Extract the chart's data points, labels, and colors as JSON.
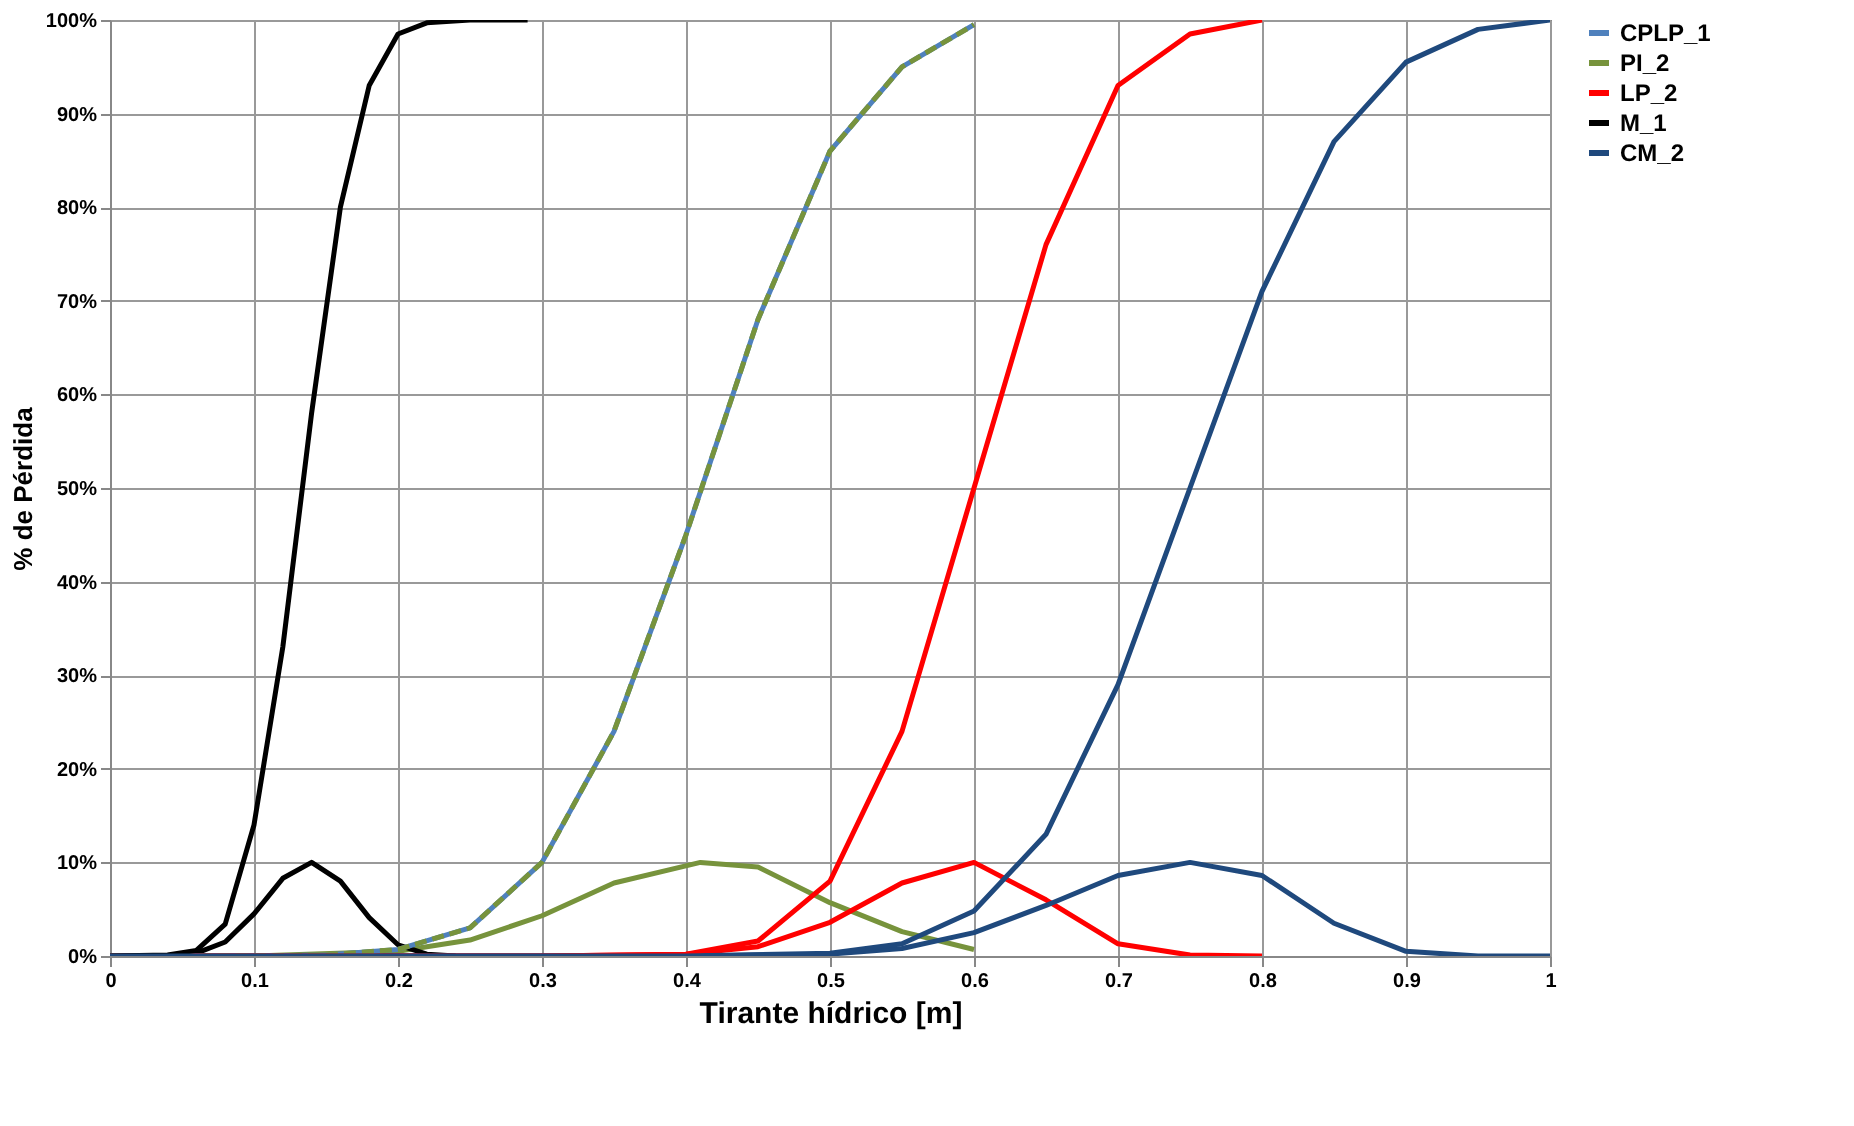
{
  "chart_data": {
    "type": "line",
    "xlabel": "Tirante hídrico [m]",
    "ylabel": "% de Pérdida",
    "xlim": [
      0,
      1
    ],
    "xticks": [
      0,
      0.1,
      0.2,
      0.3,
      0.4,
      0.5,
      0.6,
      0.7,
      0.8,
      0.9,
      1
    ],
    "ylim": [
      0,
      100
    ],
    "yticks": [
      {
        "value": 0,
        "label": "0%"
      },
      {
        "value": 10,
        "label": "10%"
      },
      {
        "value": 20,
        "label": "20%"
      },
      {
        "value": 30,
        "label": "30%"
      },
      {
        "value": 40,
        "label": "40%"
      },
      {
        "value": 50,
        "label": "50%"
      },
      {
        "value": 60,
        "label": "60%"
      },
      {
        "value": 70,
        "label": "70%"
      },
      {
        "value": 80,
        "label": "80%"
      },
      {
        "value": 90,
        "label": "90%"
      },
      {
        "value": 100,
        "label": "100%"
      }
    ],
    "grid": true,
    "legend": "right",
    "marker": "none",
    "series": [
      {
        "name": "CPLP_1",
        "color": "#4f81bd",
        "line_style": "solid",
        "x": [
          0,
          0.1,
          0.15,
          0.2,
          0.25,
          0.3,
          0.35,
          0.4,
          0.45,
          0.5,
          0.55,
          0.6
        ],
        "values": [
          0,
          0,
          0.1,
          0.7,
          3,
          10,
          24,
          45,
          68,
          86,
          95,
          99.5
        ]
      },
      {
        "name": "PI_2",
        "color": "#77933c",
        "line_style": "dashed",
        "x": [
          0,
          0.1,
          0.15,
          0.2,
          0.25,
          0.3,
          0.35,
          0.4,
          0.45,
          0.5,
          0.55,
          0.6
        ],
        "values": [
          0,
          0,
          0.1,
          0.7,
          3,
          10,
          24,
          45,
          68,
          86,
          95,
          99.5
        ]
      },
      {
        "color": "#77933c",
        "line_style": "solid",
        "x": [
          0,
          0.1,
          0.2,
          0.25,
          0.3,
          0.35,
          0.41,
          0.45,
          0.5,
          0.55,
          0.6
        ],
        "values": [
          0,
          0,
          0.5,
          1.7,
          4.3,
          7.8,
          10,
          9.5,
          5.7,
          2.6,
          0.7
        ]
      },
      {
        "name": "LP_2",
        "color": "#ff0000",
        "line_style": "solid",
        "x": [
          0,
          0.3,
          0.4,
          0.45,
          0.5,
          0.55,
          0.6,
          0.65,
          0.7,
          0.75,
          0.8
        ],
        "values": [
          0,
          0,
          0.2,
          1.6,
          8,
          24,
          50,
          76,
          93,
          98.5,
          100
        ]
      },
      {
        "color": "#ff0000",
        "line_style": "solid",
        "x": [
          0,
          0.3,
          0.4,
          0.45,
          0.5,
          0.55,
          0.6,
          0.65,
          0.7,
          0.75,
          0.8
        ],
        "values": [
          0,
          0,
          0.2,
          1,
          3.6,
          7.8,
          10,
          6,
          1.3,
          0.1,
          0
        ]
      },
      {
        "name": "M_1",
        "color": "#000000",
        "line_style": "solid",
        "x": [
          0,
          0.04,
          0.06,
          0.08,
          0.1,
          0.12,
          0.14,
          0.16,
          0.18,
          0.2,
          0.22,
          0.25,
          0.29
        ],
        "values": [
          0,
          0.1,
          0.6,
          3.4,
          14,
          33,
          58,
          80,
          93,
          98.5,
          99.7,
          100,
          100
        ]
      },
      {
        "color": "#000000",
        "line_style": "solid",
        "x": [
          0,
          0.04,
          0.06,
          0.08,
          0.1,
          0.12,
          0.14,
          0.16,
          0.18,
          0.2,
          0.22,
          0.24
        ],
        "values": [
          0,
          0,
          0.3,
          1.5,
          4.5,
          8.3,
          10,
          8,
          4.1,
          1.2,
          0.2,
          0
        ]
      },
      {
        "name": "CM_2",
        "color": "#1f497d",
        "line_style": "solid",
        "x": [
          0,
          0.4,
          0.5,
          0.55,
          0.6,
          0.65,
          0.7,
          0.75,
          0.8,
          0.85,
          0.9,
          0.95,
          1
        ],
        "values": [
          0,
          0,
          0.3,
          1.3,
          4.8,
          13,
          29,
          50,
          71,
          87,
          95.5,
          99,
          100
        ]
      },
      {
        "color": "#1f497d",
        "line_style": "solid",
        "x": [
          0,
          0.4,
          0.5,
          0.55,
          0.6,
          0.65,
          0.7,
          0.75,
          0.8,
          0.85,
          0.9,
          0.95,
          1
        ],
        "values": [
          0,
          0,
          0.2,
          0.8,
          2.5,
          5.4,
          8.6,
          10,
          8.6,
          3.5,
          0.5,
          0,
          0
        ]
      }
    ]
  }
}
